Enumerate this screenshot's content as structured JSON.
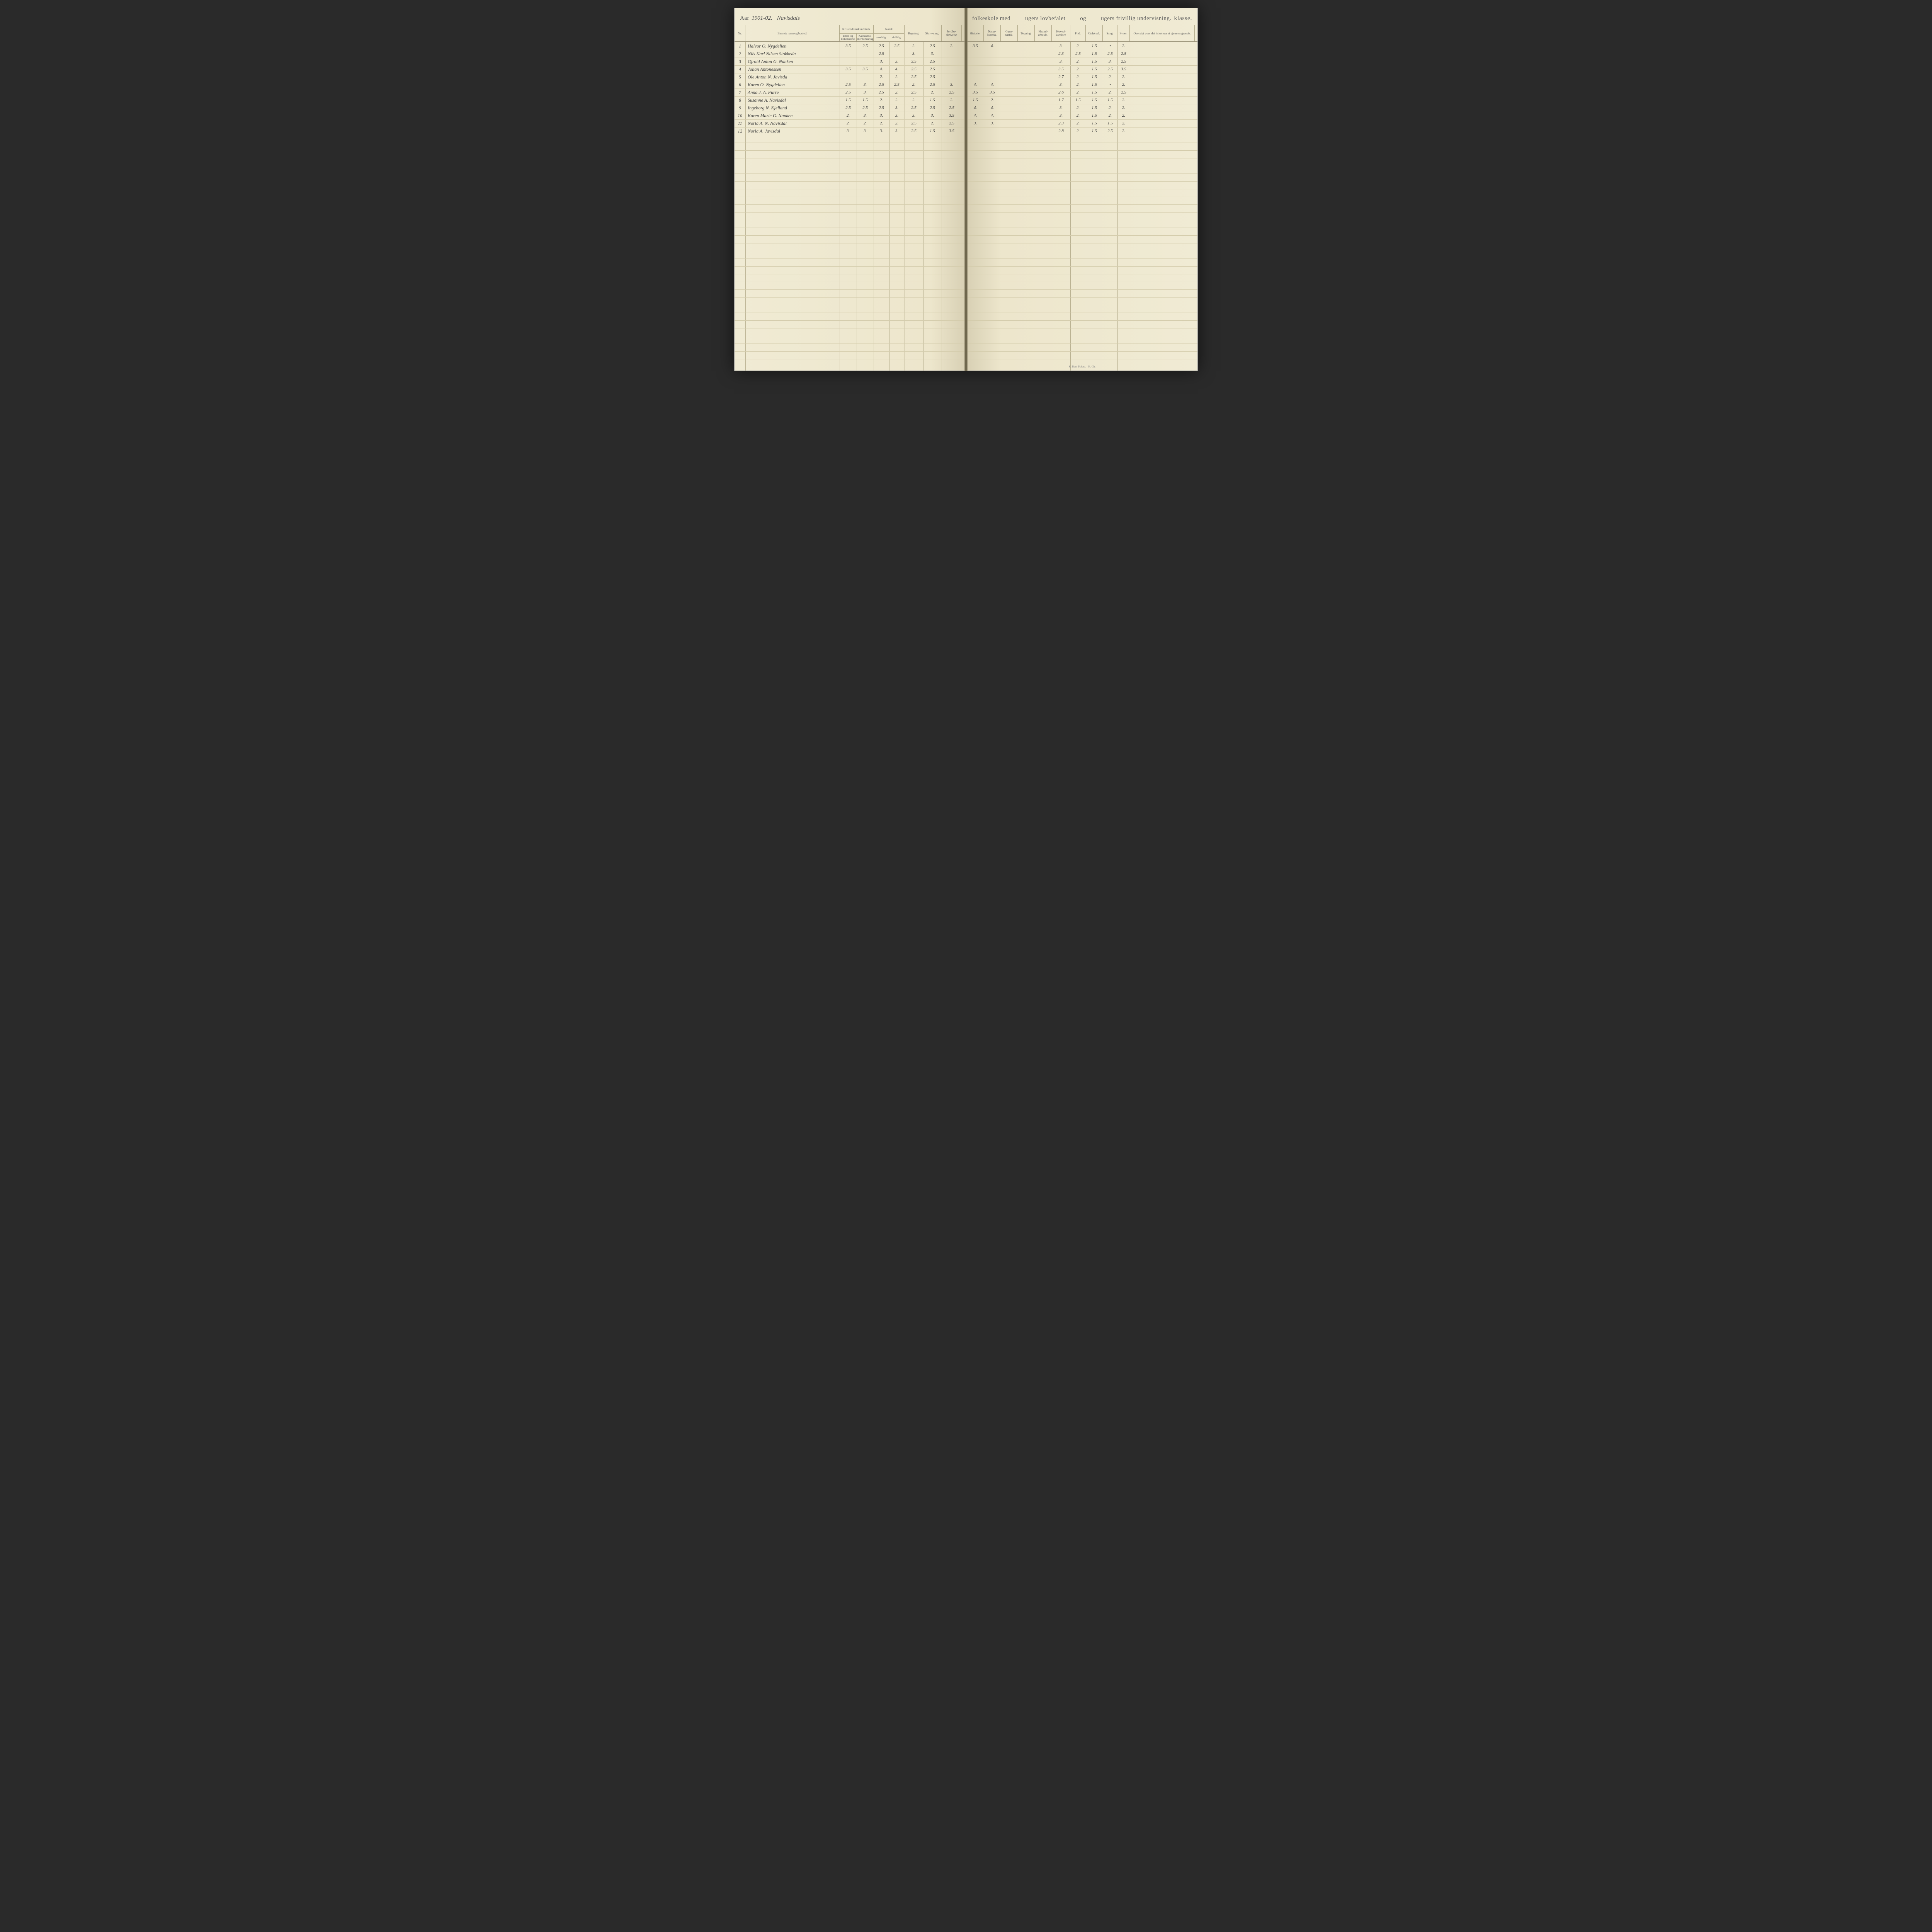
{
  "header": {
    "aar_label": "Aar",
    "aar_value": "1901-02.",
    "school_name": "Navisdals",
    "printed_mid": "folkeskole med",
    "ugers1": "ugers lovbefalet",
    "og": "og",
    "ugers2": "ugers frivillig undervisning.",
    "klasse": "klasse."
  },
  "left_columns": {
    "nr": "Nr.",
    "barnets": "Barnets navn og bosted.",
    "krist_top": "Kristendomskundskab.",
    "krist_a": "Bibel- og kirkehistorie",
    "krist_b": "Katekismus eller forklaring",
    "norsk_top": "Norsk",
    "norsk_a": "mundtlig.",
    "norsk_b": "skriftlig.",
    "regning": "Regning.",
    "skrivning": "Skriv-ning.",
    "jord": "Jordbe-skrivelse"
  },
  "right_columns": {
    "historie": "Historie.",
    "natur": "Natur-kundsk.",
    "gym": "Gym-nastik.",
    "tegning": "Tegning.",
    "haand": "Haand-arbeide.",
    "hoved": "Hoved-karakter",
    "flid": "Flid.",
    "opforsel": "Opførsel.",
    "sang": "Sang.",
    "fvr": "Fvner.",
    "oversigt": "Oversigt over det i skoleaaret gjennemgaaede."
  },
  "rows": [
    {
      "nr": "1",
      "name": "Halvor O. Nygdelien",
      "k1": "3.5",
      "k2": "2.5",
      "n1": "2.5",
      "n2": "2.5",
      "reg": "2.",
      "skr": "2.5",
      "jord": "2.",
      "hist": "3.5",
      "nat": "4.",
      "gym": "",
      "teg": "",
      "haand": "",
      "hoved": "3.",
      "flid": "2.",
      "opf": "1.5",
      "sang": "•",
      "fvr": "2."
    },
    {
      "nr": "2",
      "name": "Nils Karl Nilsen Stokkeda",
      "k1": "",
      "k2": "",
      "n1": "2.5",
      "n2": "",
      "reg": "3.",
      "skr": "3.",
      "jord": "",
      "hist": "",
      "nat": "",
      "gym": "",
      "teg": "",
      "haand": "",
      "hoved": "2.3",
      "flid": "2.5",
      "opf": "1.5",
      "sang": "2.5",
      "fvr": "2.5"
    },
    {
      "nr": "3",
      "name": "Gjrold Anton G. Nanken",
      "k1": "",
      "k2": "",
      "n1": "3.",
      "n2": "3.",
      "reg": "3.5",
      "skr": "2.5",
      "jord": "",
      "hist": "",
      "nat": "",
      "gym": "",
      "teg": "",
      "haand": "",
      "hoved": "3.",
      "flid": "2.",
      "opf": "1.5",
      "sang": "3.",
      "fvr": "2.5"
    },
    {
      "nr": "4",
      "name": "Johan Antonessen",
      "k1": "3.5",
      "k2": "3.5",
      "n1": "4.",
      "n2": "4.",
      "reg": "2.5",
      "skr": "2.5",
      "jord": "",
      "hist": "",
      "nat": "",
      "gym": "",
      "teg": "",
      "haand": "",
      "hoved": "3.5",
      "flid": "2.",
      "opf": "1.5",
      "sang": "2.5",
      "fvr": "3.5"
    },
    {
      "nr": "5",
      "name": "Ole Anton N. Javisda",
      "k1": "",
      "k2": "",
      "n1": "2.",
      "n2": "2.",
      "reg": "2.5",
      "skr": "2.5",
      "jord": "",
      "hist": "",
      "nat": "",
      "gym": "",
      "teg": "",
      "haand": "",
      "hoved": "2.7",
      "flid": "2.",
      "opf": "1.5",
      "sang": "2.",
      "fvr": "2."
    },
    {
      "nr": "6",
      "name": "Karen O. Nygdelien",
      "k1": "2.5",
      "k2": "3.",
      "n1": "2.5",
      "n2": "2.5",
      "reg": "2.",
      "skr": "2.5",
      "jord": "3.",
      "hist": "4.",
      "nat": "4.",
      "gym": "",
      "teg": "",
      "haand": "",
      "hoved": "3.",
      "flid": "2.",
      "opf": "1.5",
      "sang": "•",
      "fvr": "2."
    },
    {
      "nr": "7",
      "name": "Anna J. A. Furre",
      "k1": "2.5",
      "k2": "3.",
      "n1": "2.5",
      "n2": "2.",
      "reg": "2.5",
      "skr": "2.",
      "jord": "2.5",
      "hist": "3.5",
      "nat": "3.5",
      "gym": "",
      "teg": "",
      "haand": "",
      "hoved": "2.6",
      "flid": "2.",
      "opf": "1.5",
      "sang": "2.",
      "fvr": "2.5"
    },
    {
      "nr": "8",
      "name": "Susanne A. Navisdal",
      "k1": "1.5",
      "k2": "1.5",
      "n1": "2.",
      "n2": "2.",
      "reg": "2.",
      "skr": "1.5",
      "jord": "2.",
      "hist": "1.5",
      "nat": "2.",
      "gym": "",
      "teg": "",
      "haand": "",
      "hoved": "1.7",
      "flid": "1.5",
      "opf": "1.5",
      "sang": "1.5",
      "fvr": "2."
    },
    {
      "nr": "9",
      "name": "Ingeborg N. Kjelland",
      "k1": "2.5",
      "k2": "2.5",
      "n1": "2.5",
      "n2": "3.",
      "reg": "2.5",
      "skr": "2.5",
      "jord": "2.5",
      "hist": "4.",
      "nat": "4.",
      "gym": "",
      "teg": "",
      "haand": "",
      "hoved": "3.",
      "flid": "2.",
      "opf": "1.5",
      "sang": "2.",
      "fvr": "2."
    },
    {
      "nr": "10",
      "name": "Karen Marie G. Nanken",
      "k1": "2.",
      "k2": "3.",
      "n1": "3.",
      "n2": "3.",
      "reg": "3.",
      "skr": "3.",
      "jord": "3.5",
      "hist": "4.",
      "nat": "4.",
      "gym": "",
      "teg": "",
      "haand": "",
      "hoved": "3.",
      "flid": "2.",
      "opf": "1.5",
      "sang": "2.",
      "fvr": "2."
    },
    {
      "nr": "11",
      "name": "Norla A. N. Navisdal",
      "k1": "2.",
      "k2": "2.",
      "n1": "2.",
      "n2": "2.",
      "reg": "2.5",
      "skr": "2.",
      "jord": "2.5",
      "hist": "3.",
      "nat": "3.",
      "gym": "",
      "teg": "",
      "haand": "",
      "hoved": "2.3",
      "flid": "2.",
      "opf": "1.5",
      "sang": "1.5",
      "fvr": "2."
    },
    {
      "nr": "12",
      "name": "Norla A. Javisdal",
      "k1": "3.",
      "k2": "3.",
      "n1": "3.",
      "n2": "3.",
      "reg": "2.5",
      "skr": "1.5",
      "jord": "3.5",
      "hist": "",
      "nat": "",
      "gym": "",
      "teg": "",
      "haand": "",
      "hoved": "2.8",
      "flid": "2.",
      "opf": "1.5",
      "sang": "2.5",
      "fvr": "2."
    }
  ],
  "footer_print": "K. Bart. Pr.kast. - K. Ch.",
  "colors": {
    "paper": "#ede6cc",
    "ink": "#3a3a3a",
    "rule": "#b0a888",
    "headerText": "#5a5a5a"
  }
}
